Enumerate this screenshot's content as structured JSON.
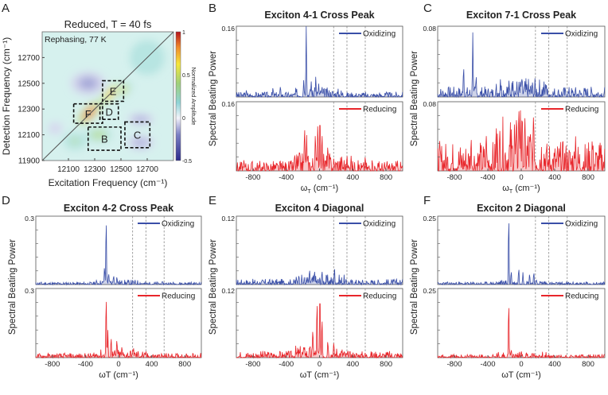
{
  "chart_data": [
    {
      "panel": "A",
      "type": "heatmap",
      "title": "Reduced,  T = 40 fs",
      "annotation": "Rephasing, 77 K",
      "xlabel": "Excitation Frequency (cm⁻¹)",
      "ylabel": "Detection Frequency (cm⁻¹)",
      "xlim": [
        11900,
        12900
      ],
      "ylim": [
        11900,
        12900
      ],
      "xticks": [
        12100,
        12300,
        12500,
        12700
      ],
      "yticks": [
        11900,
        12100,
        12300,
        12500,
        12700
      ],
      "colorbar": {
        "label": "Normalized Amplitude",
        "ticks": [
          "1",
          "0.5",
          "0",
          "-0.5"
        ],
        "range": [
          -0.5,
          1
        ]
      },
      "features": [
        {
          "x": 12260,
          "y": 12270,
          "value": 0.95,
          "sx": 110,
          "sy": 45
        },
        {
          "x": 12420,
          "y": 12420,
          "value": 0.6,
          "sx": 90,
          "sy": 35
        },
        {
          "x": 12520,
          "y": 12450,
          "value": 0.45,
          "sx": 70,
          "sy": 40
        },
        {
          "x": 12330,
          "y": 12100,
          "value": 0.3,
          "sx": 90,
          "sy": 50
        },
        {
          "x": 12150,
          "y": 12050,
          "value": 0.2,
          "sx": 80,
          "sy": 60
        },
        {
          "x": 12250,
          "y": 12500,
          "value": -0.45,
          "sx": 120,
          "sy": 80
        },
        {
          "x": 12650,
          "y": 12220,
          "value": -0.3,
          "sx": 90,
          "sy": 40
        },
        {
          "x": 12650,
          "y": 12040,
          "value": -0.3,
          "sx": 90,
          "sy": 50
        },
        {
          "x": 12000,
          "y": 12150,
          "value": -0.15,
          "sx": 50,
          "sy": 40
        },
        {
          "x": 12700,
          "y": 12700,
          "value": 0.15,
          "sx": 120,
          "sy": 120
        }
      ],
      "boxes": [
        {
          "label": "E",
          "x": [
            12360,
            12520
          ],
          "y": [
            12360,
            12520
          ]
        },
        {
          "label": "D",
          "x": [
            12340,
            12480
          ],
          "y": [
            12220,
            12340
          ]
        },
        {
          "label": "F",
          "x": [
            12140,
            12360
          ],
          "y": [
            12190,
            12340
          ]
        },
        {
          "label": "B",
          "x": [
            12250,
            12500
          ],
          "y": [
            11980,
            12160
          ]
        },
        {
          "label": "C",
          "x": [
            12530,
            12720
          ],
          "y": [
            12000,
            12200
          ]
        }
      ]
    },
    {
      "panel": "B",
      "type": "line",
      "title": "Exciton 4-1 Cross Peak",
      "ymax": 0.16,
      "ytick": "0.16",
      "seed": 3,
      "series": [
        {
          "name": "Oxidizing",
          "color": "#3a4fa8",
          "noise": 0.012,
          "peaks": [
            [
              -160,
              0.16
            ],
            [
              -190,
              0.038
            ],
            [
              -45,
              0.047
            ],
            [
              -100,
              0.035
            ],
            [
              -10,
              0.03
            ],
            [
              30,
              0.025
            ],
            [
              -470,
              0.025
            ],
            [
              -560,
              0.022
            ],
            [
              -880,
              0.015
            ]
          ]
        },
        {
          "name": "Reducing",
          "color": "#e8262b",
          "noise": 0.025,
          "peaks": [
            [
              5,
              0.135
            ],
            [
              -20,
              0.115
            ],
            [
              -180,
              0.105
            ],
            [
              -155,
              0.085
            ],
            [
              -50,
              0.09
            ],
            [
              30,
              0.09
            ],
            [
              100,
              0.06
            ],
            [
              330,
              0.038
            ],
            [
              380,
              0.035
            ],
            [
              550,
              0.035
            ],
            [
              -300,
              0.04
            ]
          ]
        }
      ]
    },
    {
      "panel": "C",
      "type": "line",
      "title": "Exciton 7-1 Cross Peak",
      "ymax": 0.08,
      "ytick": "0.08",
      "seed": 7,
      "series": [
        {
          "name": "Oxidizing",
          "color": "#3a4fa8",
          "noise": 0.012,
          "peaks": [
            [
              -580,
              0.073
            ],
            [
              -690,
              0.035
            ],
            [
              -540,
              0.025
            ],
            [
              -250,
              0.02
            ],
            [
              -100,
              0.018
            ],
            [
              0,
              0.018
            ],
            [
              300,
              0.015
            ]
          ]
        },
        {
          "name": "Reducing",
          "color": "#e8262b",
          "noise": 0.035,
          "peaks": [
            [
              -30,
              0.077
            ],
            [
              -10,
              0.07
            ],
            [
              10,
              0.065
            ],
            [
              -80,
              0.06
            ],
            [
              -300,
              0.055
            ],
            [
              150,
              0.05
            ],
            [
              -420,
              0.045
            ],
            [
              -600,
              0.04
            ],
            [
              650,
              0.04
            ],
            [
              850,
              0.038
            ]
          ]
        }
      ]
    },
    {
      "panel": "D",
      "type": "line",
      "title": "Exciton 4-2 Cross Peak",
      "ymax": 0.3,
      "ytick": "0.3",
      "seed": 11,
      "series": [
        {
          "name": "Oxidizing",
          "color": "#3a4fa8",
          "noise": 0.012,
          "peaks": [
            [
              -150,
              0.29
            ],
            [
              -170,
              0.08
            ],
            [
              -120,
              0.05
            ],
            [
              -60,
              0.04
            ],
            [
              -20,
              0.035
            ]
          ]
        },
        {
          "name": "Reducing",
          "color": "#e8262b",
          "noise": 0.02,
          "peaks": [
            [
              -150,
              0.27
            ],
            [
              -130,
              0.12
            ],
            [
              -90,
              0.09
            ],
            [
              -20,
              0.08
            ],
            [
              40,
              0.05
            ],
            [
              180,
              0.045
            ],
            [
              330,
              0.03
            ]
          ]
        }
      ]
    },
    {
      "panel": "E",
      "type": "line",
      "title": "Exciton 4 Diagonal",
      "ymax": 0.12,
      "ytick": "0.12",
      "seed": 17,
      "series": [
        {
          "name": "Oxidizing",
          "color": "#3a4fa8",
          "noise": 0.01,
          "peaks": [
            [
              -120,
              0.027
            ],
            [
              -60,
              0.025
            ],
            [
              30,
              0.025
            ],
            [
              180,
              0.03
            ],
            [
              -250,
              0.015
            ]
          ]
        },
        {
          "name": "Reducing",
          "color": "#e8262b",
          "noise": 0.012,
          "peaks": [
            [
              5,
              0.12
            ],
            [
              -30,
              0.1
            ],
            [
              30,
              0.07
            ],
            [
              -80,
              0.05
            ],
            [
              100,
              0.03
            ],
            [
              170,
              0.025
            ],
            [
              -180,
              0.02
            ]
          ]
        }
      ]
    },
    {
      "panel": "F",
      "type": "line",
      "title": "Exciton 2 Diagonal",
      "ymax": 0.25,
      "ytick": "0.25",
      "seed": 23,
      "series": [
        {
          "name": "Oxidizing",
          "color": "#3a4fa8",
          "noise": 0.01,
          "peaks": [
            [
              -150,
              0.25
            ],
            [
              -120,
              0.05
            ],
            [
              -30,
              0.06
            ],
            [
              20,
              0.045
            ],
            [
              100,
              0.04
            ],
            [
              150,
              0.045
            ]
          ]
        },
        {
          "name": "Reducing",
          "color": "#e8262b",
          "noise": 0.012,
          "peaks": [
            [
              -150,
              0.2
            ],
            [
              -120,
              0.03
            ],
            [
              0,
              0.025
            ],
            [
              60,
              0.02
            ]
          ]
        }
      ]
    }
  ],
  "common": {
    "xlabel": "ωT (cm⁻¹)",
    "xlabel_main": "ω",
    "xlabel_sub": "T",
    "xlabel_unit": " (cm⁻¹)",
    "ylabel": "Spectral Beating Power",
    "xlim": [
      -1000,
      1000
    ],
    "xticks": [
      -800,
      -400,
      0,
      400,
      800
    ],
    "dashed_lines": [
      170,
      330,
      550
    ]
  },
  "panel_letters": [
    "A",
    "B",
    "C",
    "D",
    "E",
    "F"
  ]
}
